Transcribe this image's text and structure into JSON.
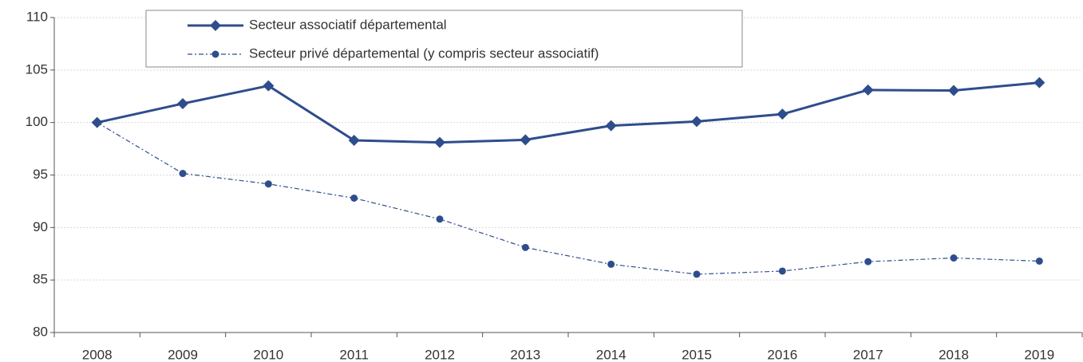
{
  "chart_data": {
    "type": "line",
    "categories": [
      "2008",
      "2009",
      "2010",
      "2011",
      "2012",
      "2013",
      "2014",
      "2015",
      "2016",
      "2017",
      "2018",
      "2019"
    ],
    "series": [
      {
        "name": "Secteur associatif départemental",
        "color": "#2e4d8c",
        "marker": "diamond",
        "line_style": "solid",
        "values": [
          100,
          101.8,
          103.5,
          98.3,
          98.1,
          98.35,
          99.7,
          100.1,
          100.8,
          103.1,
          103.05,
          103.8
        ]
      },
      {
        "name": "Secteur privé départemental (y compris secteur associatif)",
        "color": "#2e4d8c",
        "marker": "circle",
        "line_style": "dashdot",
        "values": [
          100,
          95.15,
          94.15,
          92.8,
          90.8,
          88.1,
          86.5,
          85.55,
          85.85,
          86.75,
          87.1,
          86.8
        ]
      }
    ],
    "ylim": [
      80,
      110
    ],
    "yticks": [
      80,
      85,
      90,
      95,
      100,
      105,
      110
    ],
    "grid": true,
    "legend": "top"
  }
}
